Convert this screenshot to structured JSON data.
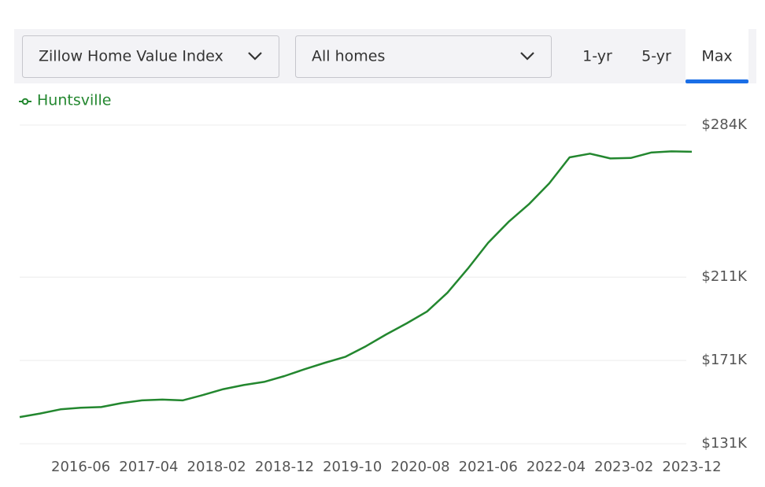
{
  "ui": {
    "metric": "Zillow Home Value Index",
    "home_type": "All homes",
    "tabs": [
      "1-yr",
      "5-yr",
      "Max"
    ]
  },
  "chart_data": {
    "type": "line",
    "x": [
      "2015-09",
      "2015-12",
      "2016-03",
      "2016-06",
      "2016-09",
      "2016-12",
      "2017-03",
      "2017-06",
      "2017-09",
      "2017-12",
      "2018-03",
      "2018-06",
      "2018-09",
      "2018-12",
      "2019-03",
      "2019-06",
      "2019-09",
      "2019-12",
      "2020-03",
      "2020-06",
      "2020-09",
      "2020-12",
      "2021-03",
      "2021-06",
      "2021-09",
      "2021-12",
      "2022-03",
      "2022-06",
      "2022-09",
      "2022-12",
      "2023-03",
      "2023-06",
      "2023-09",
      "2023-12"
    ],
    "series": [
      {
        "name": "Huntsville",
        "color": "#23872f",
        "values": [
          143.8,
          145.5,
          147.5,
          148.3,
          148.6,
          150.5,
          151.8,
          152.2,
          151.8,
          154.4,
          157.2,
          159.2,
          160.7,
          163.5,
          166.8,
          169.9,
          172.8,
          177.8,
          183.5,
          188.8,
          194.5,
          203.5,
          215,
          227.5,
          237.5,
          246,
          256,
          268.5,
          270.3,
          268,
          268.2,
          270.8,
          271.4,
          271.2
        ]
      }
    ],
    "xlim": [
      "2015-09",
      "2023-12"
    ],
    "xticks": [
      "2016-06",
      "2017-04",
      "2018-02",
      "2018-12",
      "2019-10",
      "2020-08",
      "2021-06",
      "2022-04",
      "2023-02",
      "2023-12"
    ],
    "ylim": [
      131,
      284
    ],
    "yticks": [
      {
        "value": 131,
        "label": "$131K"
      },
      {
        "value": 171,
        "label": "$171K"
      },
      {
        "value": 211,
        "label": "$211K"
      },
      {
        "value": 284,
        "label": "$284K"
      }
    ],
    "grid": true
  }
}
